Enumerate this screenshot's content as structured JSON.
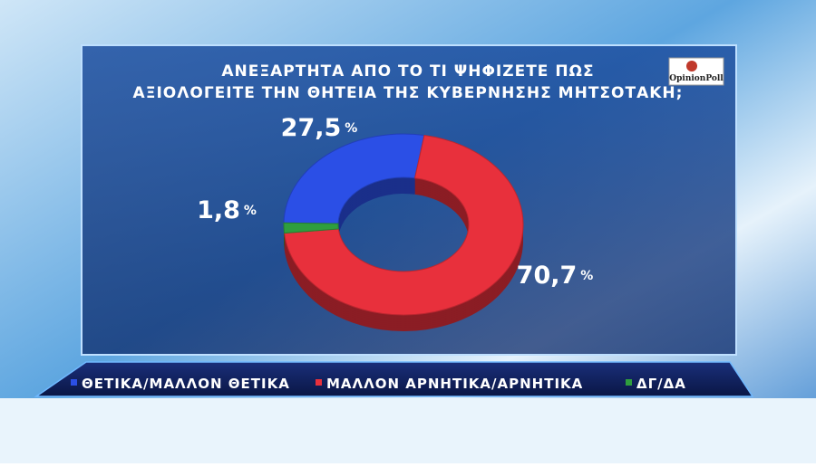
{
  "chart_data": {
    "type": "pie",
    "title": [
      "ΑΝΕΞΑΡΤΗΤΑ ΑΠΟ ΤΟ ΤΙ ΨΗΦΙΖΕΤΕ ΠΩΣ",
      "ΑΞΙΟΛΟΓΕΙΤΕ ΤΗΝ ΘΗΤΕΙΑ ΤΗΣ ΚΥΒΕΡΝΗΣΗΣ ΜΗΤΣΟΤΑΚΗ;"
    ],
    "source": "OpinionPoll",
    "categories": [
      "ΘΕΤΙΚΑ/ΜΑΛΛΟΝ ΘΕΤΙΚΑ",
      "ΜΑΛΛΟΝ ΑΡΝΗΤΙΚΑ/ΑΡΝΗΤΙΚΑ",
      "ΔΓ/ΔΑ"
    ],
    "values": [
      27.5,
      70.7,
      1.8
    ],
    "value_labels": [
      "27,5",
      "70,7",
      "1,8"
    ],
    "unit": "%",
    "colors": [
      "#2b4fe6",
      "#e8303c",
      "#2f9e3e"
    ],
    "donut": true,
    "legend": "bottom"
  }
}
